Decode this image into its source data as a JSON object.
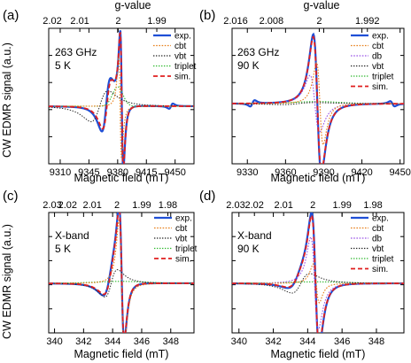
{
  "panel_labels": [
    "(a)",
    "(b)",
    "(c)",
    "(d)"
  ],
  "common": {
    "ylabel": "CW EDMR signal (a.u.)",
    "xlabel": "Magnetic field (mT)",
    "top_label": "g-value",
    "colors": {
      "exp.": "#1f4fd6",
      "cbt": "#e87f1a",
      "db": "#9a55e6",
      "vbt": "#222222",
      "triplet": "#2db82d",
      "sim.": "#e01f1f"
    }
  },
  "chart_data": [
    {
      "type": "line",
      "panel": "(a)",
      "annotation": [
        "263 GHz",
        "5 K"
      ],
      "top_axis_label": "g-value",
      "xticks": [
        9310,
        9345,
        9380,
        9415,
        9450
      ],
      "xlim": [
        9296,
        9473
      ],
      "g_ticks": [
        "2.02",
        "2.01",
        "2",
        "1.99"
      ],
      "g_tick_fields": [
        9287.5,
        9333.9,
        9380.6,
        9427.7
      ],
      "center": 9385,
      "legend": [
        "exp.",
        "cbt",
        "vbt",
        "triplet",
        "sim."
      ],
      "series": [
        {
          "name": "exp.",
          "components": [
            {
              "type": "disp",
              "a": 1.35,
              "c": 9385,
              "w": 3.2
            },
            {
              "type": "disp",
              "a": -0.5,
              "c": 9366,
              "w": 9
            },
            {
              "type": "disp",
              "a": -0.05,
              "c": 9445,
              "w": 4
            }
          ]
        },
        {
          "name": "cbt",
          "components": [
            {
              "type": "disp",
              "a": 1.0,
              "c": 9383,
              "w": 3.0
            }
          ]
        },
        {
          "name": "vbt",
          "components": [
            {
              "type": "disp",
              "a": -0.3,
              "c": 9358,
              "w": 18
            }
          ]
        },
        {
          "name": "triplet",
          "components": [
            {
              "type": "gauss",
              "a": 0.38,
              "c": 9380,
              "w": 9
            }
          ]
        },
        {
          "name": "sim.",
          "components": [
            {
              "type": "disp",
              "a": 1.3,
              "c": 9385,
              "w": 3.3
            },
            {
              "type": "disp",
              "a": -0.45,
              "c": 9367,
              "w": 9
            }
          ]
        }
      ]
    },
    {
      "type": "line",
      "panel": "(b)",
      "annotation": [
        "263 GHz",
        "90 K"
      ],
      "top_axis_label": "g-value",
      "xticks": [
        9330,
        9360,
        9390,
        9420,
        9450
      ],
      "xlim": [
        9318,
        9453
      ],
      "g_ticks": [
        "2.016",
        "2.008",
        "2",
        "1.992"
      ],
      "g_tick_fields": [
        9311.4,
        9348.9,
        9386.5,
        9424.3
      ],
      "center": 9389,
      "legend": [
        "exp.",
        "cbt",
        "db",
        "vbt",
        "triplet",
        "sim."
      ],
      "series": [
        {
          "name": "exp.",
          "components": [
            {
              "type": "disp",
              "a": 1.35,
              "c": 9385,
              "w": 5.5
            },
            {
              "type": "disp",
              "a": -0.06,
              "c": 9334,
              "w": 3
            },
            {
              "type": "disp",
              "a": 0.05,
              "c": 9444,
              "w": 3
            }
          ]
        },
        {
          "name": "cbt",
          "components": [
            {
              "type": "disp",
              "a": 0.8,
              "c": 9387,
              "w": 4.5
            }
          ]
        },
        {
          "name": "db",
          "components": [
            {
              "type": "disp",
              "a": 0.55,
              "c": 9383,
              "w": 6.5
            }
          ]
        },
        {
          "name": "vbt",
          "components": [
            {
              "type": "disp",
              "a": -0.02,
              "c": 9370,
              "w": 22
            }
          ]
        },
        {
          "name": "triplet",
          "components": [
            {
              "type": "gauss",
              "a": 0.04,
              "c": 9385,
              "w": 25
            }
          ]
        },
        {
          "name": "sim.",
          "components": [
            {
              "type": "disp",
              "a": 1.3,
              "c": 9385,
              "w": 5.6
            }
          ]
        }
      ]
    },
    {
      "type": "line",
      "panel": "(c)",
      "annotation": [
        "X-band",
        "5 K"
      ],
      "top_axis_label": "",
      "xticks": [
        340,
        342,
        344,
        346,
        348
      ],
      "xlim": [
        339.6,
        349.6
      ],
      "g_ticks": [
        "2.03",
        "2.02",
        "2.01",
        "2",
        "1.99",
        "1.98"
      ],
      "g_tick_fields": [
        339.2,
        340.9,
        342.6,
        344.3,
        346.0,
        347.8
      ],
      "center": 344.7,
      "legend": [
        "exp.",
        "cbt",
        "vbt",
        "triplet",
        "sim."
      ],
      "series": [
        {
          "name": "exp.",
          "components": [
            {
              "type": "disp",
              "a": 1.35,
              "c": 344.62,
              "w": 0.3
            },
            {
              "type": "disp",
              "a": -0.3,
              "c": 343.8,
              "w": 0.7
            }
          ]
        },
        {
          "name": "cbt",
          "components": [
            {
              "type": "disp",
              "a": 1.3,
              "c": 344.62,
              "w": 0.3
            }
          ]
        },
        {
          "name": "vbt",
          "components": [
            {
              "type": "disp",
              "a": -0.28,
              "c": 343.9,
              "w": 0.75
            }
          ]
        },
        {
          "name": "triplet",
          "components": [
            {
              "type": "gauss",
              "a": 0.04,
              "c": 344.5,
              "w": 2.5
            }
          ]
        },
        {
          "name": "sim.",
          "components": [
            {
              "type": "disp",
              "a": 1.3,
              "c": 344.62,
              "w": 0.3
            },
            {
              "type": "disp",
              "a": -0.28,
              "c": 343.85,
              "w": 0.7
            }
          ]
        }
      ]
    },
    {
      "type": "line",
      "panel": "(d)",
      "annotation": [
        "X-band",
        "90 K"
      ],
      "top_axis_label": "",
      "xticks": [
        340,
        342,
        344,
        346,
        348
      ],
      "xlim": [
        339.6,
        349.6
      ],
      "g_ticks": [
        "2.03",
        "2.02",
        "2.01",
        "2",
        "1.99",
        "1.98"
      ],
      "g_tick_fields": [
        339.2,
        340.9,
        342.6,
        344.3,
        346.0,
        347.8
      ],
      "center": 344.7,
      "legend": [
        "exp.",
        "cbt",
        "db",
        "vbt",
        "triplet",
        "sim."
      ],
      "series": [
        {
          "name": "exp.",
          "components": [
            {
              "type": "disp",
              "a": 1.35,
              "c": 344.45,
              "w": 0.38
            },
            {
              "type": "disp",
              "a": -0.15,
              "c": 343.4,
              "w": 0.8
            }
          ]
        },
        {
          "name": "cbt",
          "components": [
            {
              "type": "disp",
              "a": 0.4,
              "c": 344.5,
              "w": 0.3
            }
          ]
        },
        {
          "name": "db",
          "components": [
            {
              "type": "disp",
              "a": 0.95,
              "c": 344.4,
              "w": 0.38
            }
          ]
        },
        {
          "name": "vbt",
          "components": [
            {
              "type": "disp",
              "a": -0.2,
              "c": 343.6,
              "w": 0.9
            }
          ]
        },
        {
          "name": "triplet",
          "components": [
            {
              "type": "gauss",
              "a": 0.03,
              "c": 344.5,
              "w": 2.5
            }
          ]
        },
        {
          "name": "sim.",
          "components": [
            {
              "type": "disp",
              "a": 1.3,
              "c": 344.45,
              "w": 0.38
            },
            {
              "type": "disp",
              "a": -0.13,
              "c": 343.4,
              "w": 0.8
            }
          ]
        }
      ]
    }
  ]
}
